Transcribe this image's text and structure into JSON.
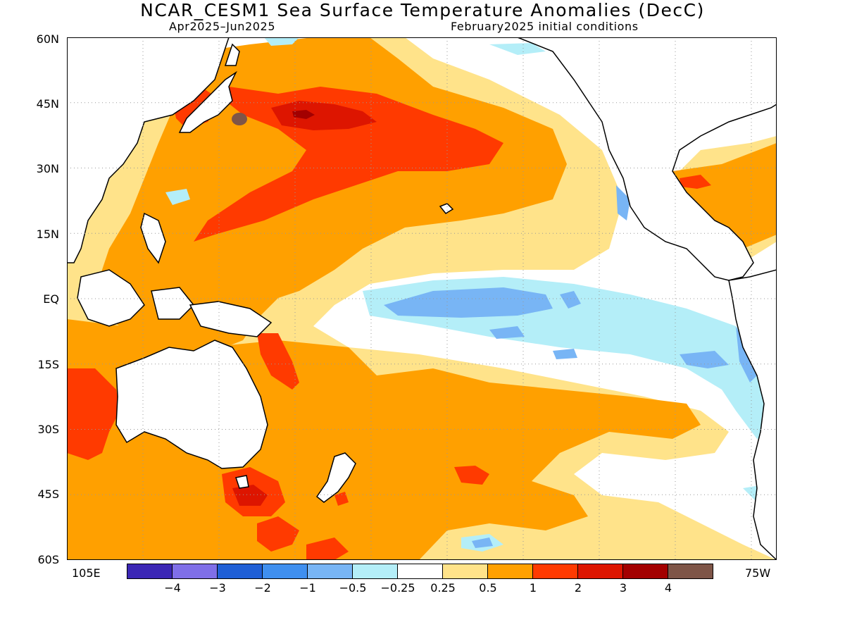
{
  "title": "NCAR_CESM1 Sea Surface Temperature Anomalies (DecC)",
  "subtitle_left": "Apr2025–Jun2025",
  "subtitle_right": "February2025 initial conditions",
  "lat_labels": [
    "60N",
    "45N",
    "30N",
    "15N",
    "EQ",
    "15S",
    "30S",
    "45S",
    "60S"
  ],
  "lon_left": "105E",
  "lon_right": "75W",
  "colorbar": {
    "colors": [
      "#3b27b5",
      "#7f6fe8",
      "#1f5fd6",
      "#3f8fef",
      "#78b5f5",
      "#b4eef8",
      "#ffffff",
      "#ffe38a",
      "#ffa000",
      "#ff3a00",
      "#dd1500",
      "#a30000",
      "#7e5548"
    ],
    "labels": [
      "−4",
      "−3",
      "−2",
      "−1",
      "−0.5",
      "−0.25",
      "0.25",
      "0.5",
      "1",
      "2",
      "3",
      "4"
    ]
  },
  "palette": {
    "ocean": "#ffffff",
    "light_yellow": "#ffe38a",
    "orange": "#ffa000",
    "red": "#ff3a00",
    "dark_red": "#dd1500",
    "maroon": "#a30000",
    "brown": "#7e5548",
    "light_cyan": "#b4eef8",
    "light_blue": "#78b5f5",
    "land_line": "#000000",
    "grid": "#999999"
  }
}
